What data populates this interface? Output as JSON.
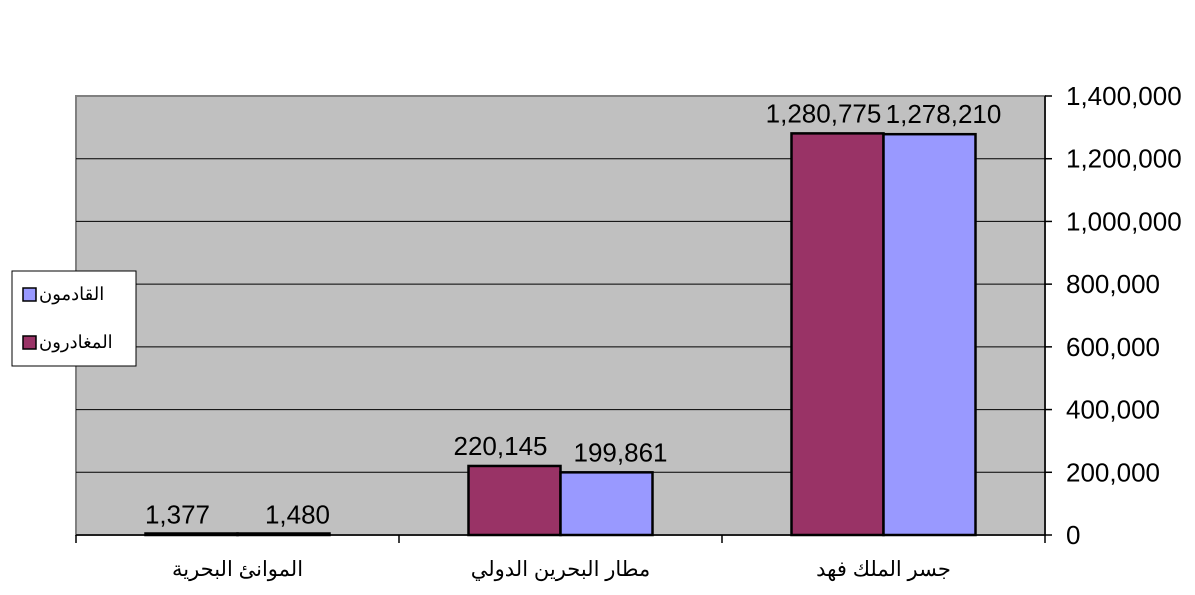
{
  "chart_data": {
    "type": "bar",
    "categories": [
      "جسر الملك فهد",
      "مطار البحرين الدولي",
      "الموانئ البحرية"
    ],
    "series": [
      {
        "name": "المغادرون",
        "color": "#993366",
        "values": [
          1280775,
          220145,
          1377
        ]
      },
      {
        "name": "القادمون",
        "color": "#9999FF",
        "values": [
          1278210,
          199861,
          1480
        ]
      }
    ],
    "data_labels": [
      [
        "1,280,775",
        "220,145",
        "1,377"
      ],
      [
        "1,278,210",
        "199,861",
        "1,480"
      ]
    ],
    "yticks": [
      "0",
      "200,000",
      "400,000",
      "600,000",
      "800,000",
      "1,000,000",
      "1,200,000",
      "1,400,000"
    ],
    "ylim": [
      0,
      1400000
    ],
    "grid": true,
    "y_axis_position": "right",
    "legend_position": "left",
    "plot_background": "#C0C0C0",
    "title": "",
    "xlabel": "",
    "ylabel": ""
  }
}
